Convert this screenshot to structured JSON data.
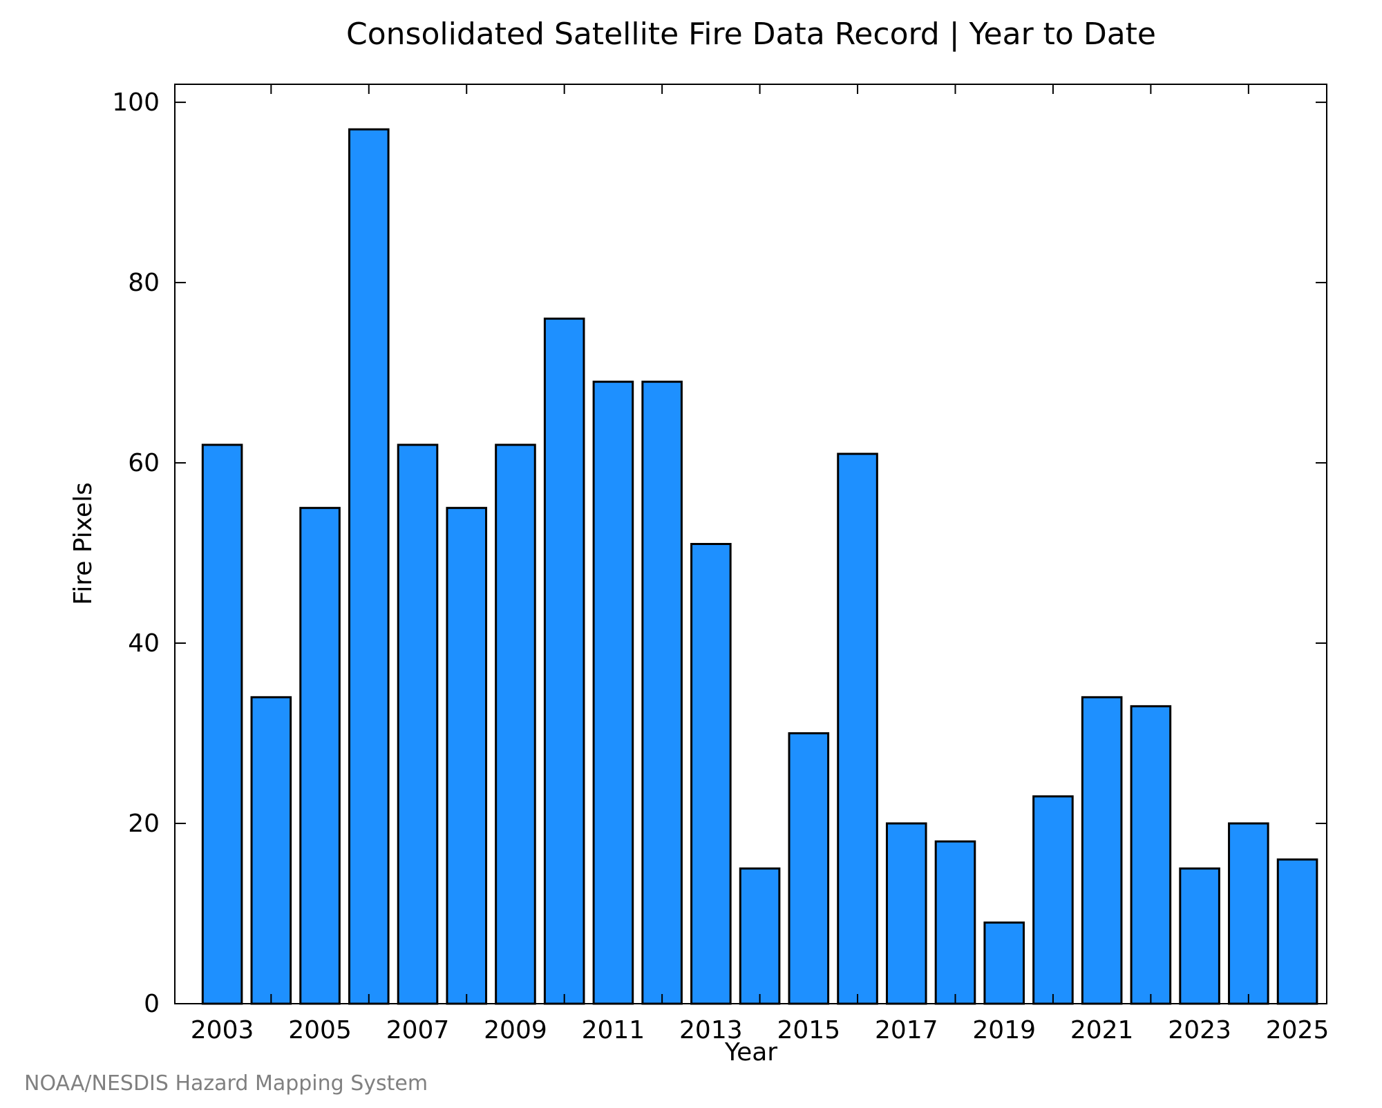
{
  "chart_data": {
    "type": "bar",
    "title": "Consolidated Satellite Fire Data Record | Year to Date",
    "xlabel": "Year",
    "ylabel": "Fire Pixels",
    "categories": [
      "2003",
      "2004",
      "2005",
      "2006",
      "2007",
      "2008",
      "2009",
      "2010",
      "2011",
      "2012",
      "2013",
      "2014",
      "2015",
      "2016",
      "2017",
      "2018",
      "2019",
      "2020",
      "2021",
      "2022",
      "2023",
      "2024",
      "2025"
    ],
    "values": [
      62,
      34,
      55,
      97,
      62,
      55,
      62,
      76,
      69,
      69,
      51,
      15,
      30,
      61,
      20,
      18,
      9,
      23,
      34,
      33,
      15,
      20,
      16
    ],
    "x_tick_labels": [
      "2003",
      "2005",
      "2007",
      "2009",
      "2011",
      "2013",
      "2015",
      "2017",
      "2019",
      "2021",
      "2023",
      "2025"
    ],
    "y_ticks": [
      0,
      20,
      40,
      60,
      80,
      100
    ],
    "ylim": [
      0,
      102
    ],
    "bar_color": "#1e90ff",
    "bar_edge_color": "#000000",
    "grid": false,
    "legend": "none"
  },
  "footer": {
    "credit": "NOAA/NESDIS Hazard Mapping System"
  }
}
